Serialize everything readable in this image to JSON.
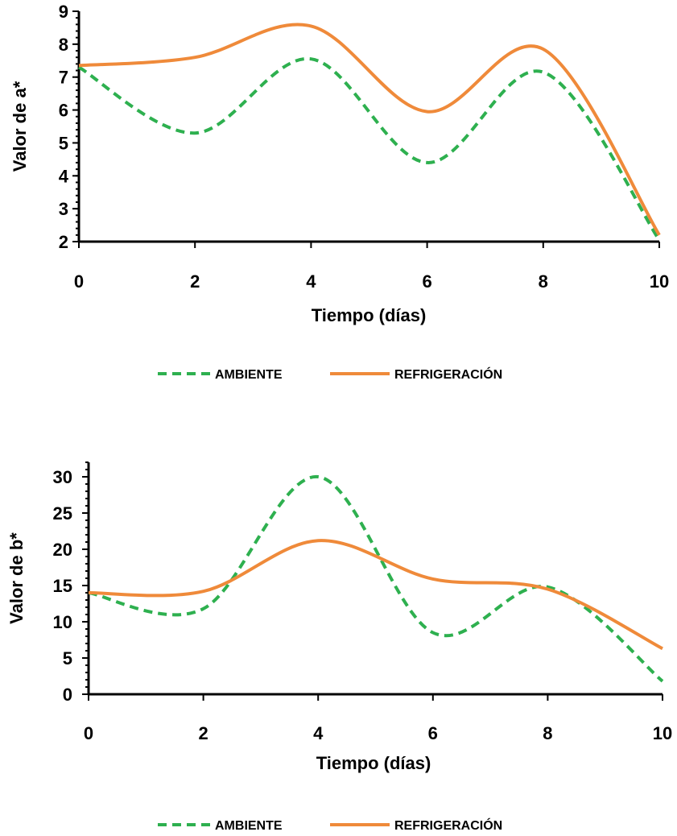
{
  "chart_data": [
    {
      "type": "line",
      "title": "",
      "xlabel": "Tiempo (días)",
      "ylabel": "Valor de a*",
      "xlim": [
        0,
        10
      ],
      "ylim": [
        2,
        9
      ],
      "xticks": [
        0,
        2,
        4,
        6,
        8,
        10
      ],
      "yticks": [
        2,
        3,
        4,
        5,
        6,
        7,
        8,
        9
      ],
      "x": [
        0,
        2,
        4,
        6,
        8,
        10
      ],
      "legend_position": "bottom",
      "series": [
        {
          "name": "AMBIENTE",
          "values": [
            7.3,
            5.3,
            7.55,
            4.4,
            7.15,
            2.05
          ],
          "color": "#2eb04f",
          "style": "dashed"
        },
        {
          "name": "REFRIGERACIÓN",
          "values": [
            7.35,
            7.6,
            8.55,
            5.95,
            7.85,
            2.2
          ],
          "color": "#ef8a3a",
          "style": "solid"
        }
      ]
    },
    {
      "type": "line",
      "title": "",
      "xlabel": "Tiempo (días)",
      "ylabel": "Valor de b*",
      "xlim": [
        0,
        10
      ],
      "ylim": [
        0,
        32
      ],
      "xticks": [
        0,
        2,
        4,
        6,
        8,
        10
      ],
      "yticks": [
        0,
        5,
        10,
        15,
        20,
        25,
        30
      ],
      "x": [
        0,
        2,
        4,
        6,
        8,
        10
      ],
      "legend_position": "bottom",
      "series": [
        {
          "name": "AMBIENTE",
          "values": [
            14.0,
            11.8,
            30.0,
            8.5,
            14.8,
            1.8
          ],
          "color": "#2eb04f",
          "style": "dashed"
        },
        {
          "name": "REFRIGERACIÓN",
          "values": [
            14.0,
            14.2,
            21.2,
            15.9,
            14.5,
            6.3
          ],
          "color": "#ef8a3a",
          "style": "solid"
        }
      ]
    }
  ]
}
